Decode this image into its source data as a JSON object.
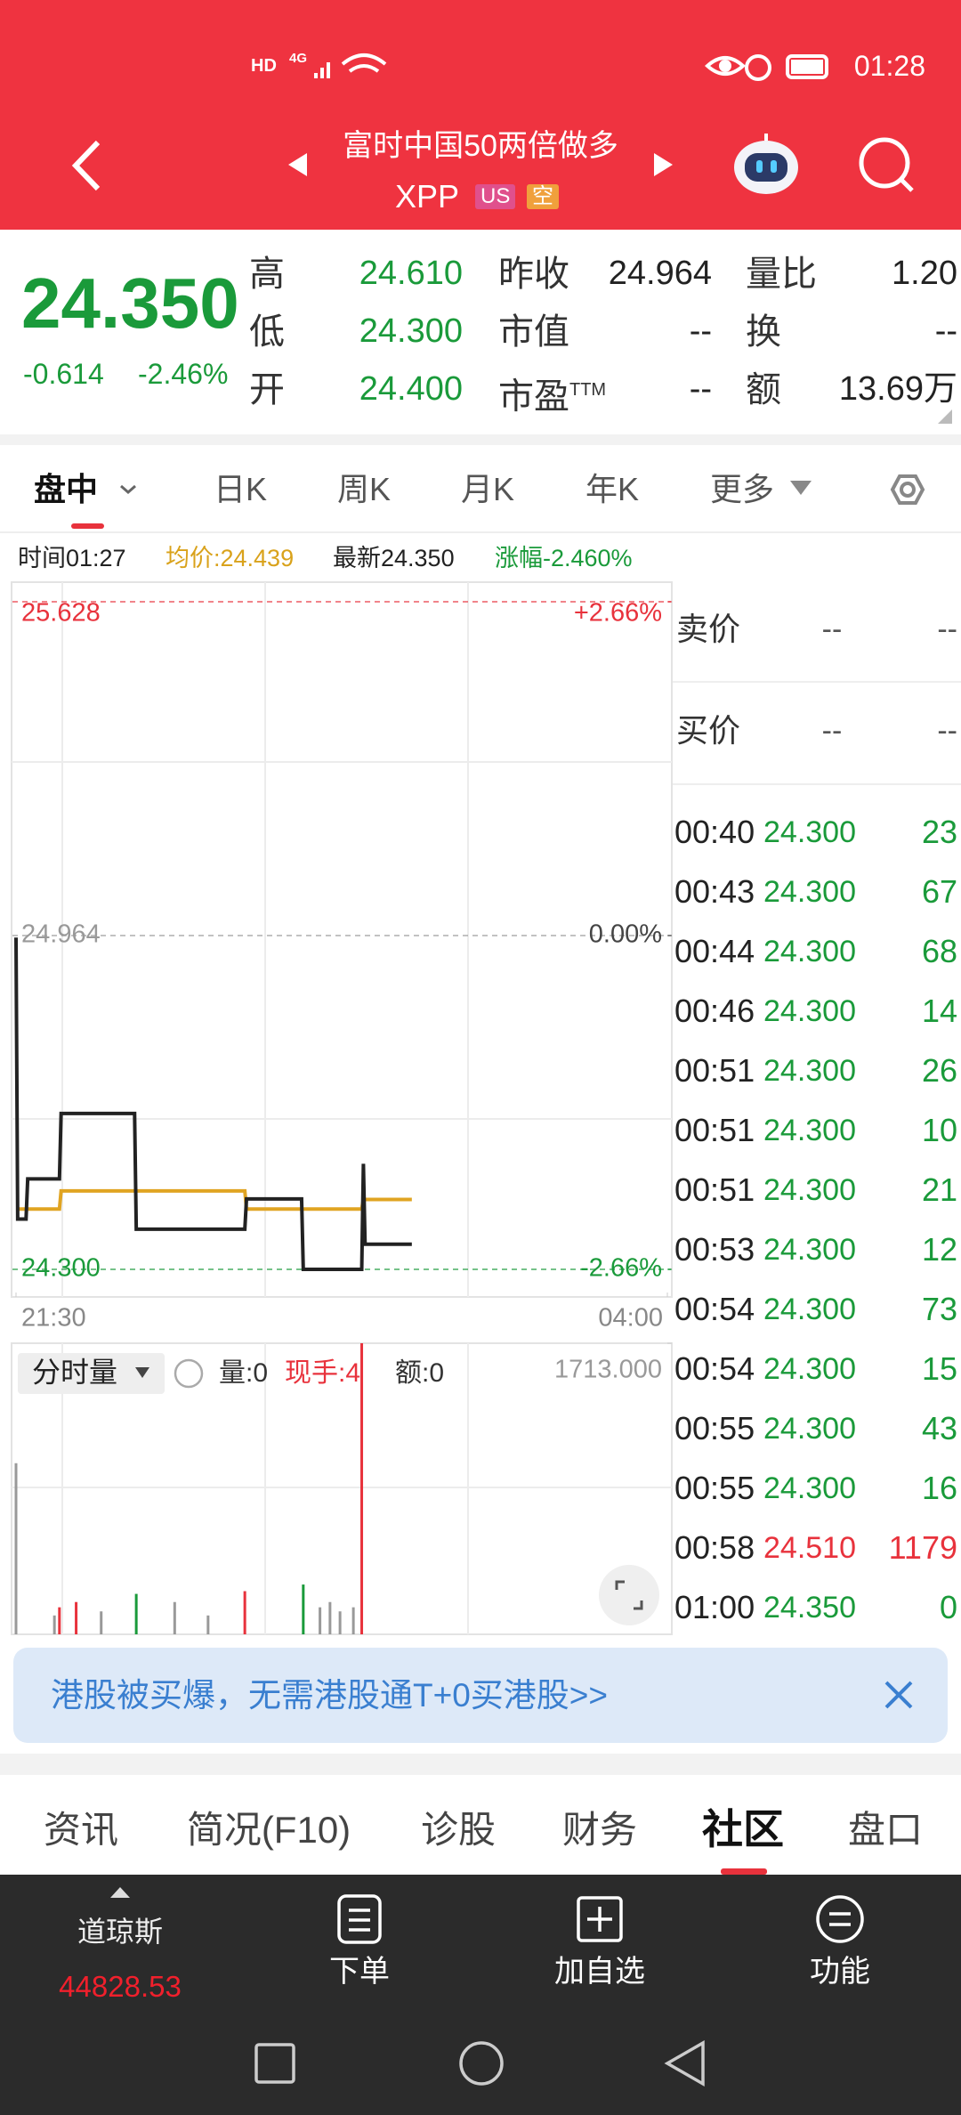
{
  "status_bar": {
    "network": [
      "HD",
      "4G"
    ],
    "time": "01:28"
  },
  "header": {
    "title": "富时中国50两倍做多",
    "symbol": "XPP",
    "badges": [
      "US",
      "空"
    ]
  },
  "colors": {
    "up": "#e8323c",
    "down": "#1a9a3a",
    "flat": "#999999"
  },
  "quote": {
    "price": "24.350",
    "change": "-0.614",
    "change_percent": "-2.46%",
    "rows": [
      [
        {
          "label": "高",
          "value": "24.610"
        },
        {
          "label": "昨收",
          "value": "24.964"
        },
        {
          "label": "量比",
          "value": "1.20"
        }
      ],
      [
        {
          "label": "低",
          "value": "24.300"
        },
        {
          "label": "市值",
          "value": "--"
        },
        {
          "label": "换",
          "value": "--"
        }
      ],
      [
        {
          "label": "开",
          "value": "24.400"
        },
        {
          "label": "市盈",
          "sup": "TTM",
          "value": "--"
        },
        {
          "label": "额",
          "value": "13.69万"
        }
      ]
    ]
  },
  "tabs": {
    "items": [
      "盘中",
      "日K",
      "周K",
      "月K",
      "年K",
      "更多"
    ],
    "active": 0
  },
  "info": {
    "time": "时间01:27",
    "average": "均价:24.439",
    "latest": "最新24.350",
    "change": "涨幅-2.460%"
  },
  "chart_data": [
    {
      "type": "line",
      "x": [
        "21:30",
        "21:31",
        "21:36",
        "21:37",
        "21:56",
        "21:57",
        "22:41",
        "22:42",
        "23:47",
        "23:48",
        "00:21",
        "00:22",
        "00:57",
        "00:58",
        "00:59",
        "01:27"
      ],
      "series": [
        {
          "color": "#222222",
          "values": [
            24.96,
            24.4,
            24.4,
            24.48,
            24.48,
            24.61,
            24.61,
            24.38,
            24.38,
            24.44,
            24.44,
            24.3,
            24.3,
            24.51,
            24.35,
            24.35
          ]
        },
        {
          "color": "#e0a422",
          "values": [
            24.42,
            24.42,
            24.42,
            24.42,
            24.42,
            24.456,
            24.456,
            24.456,
            24.456,
            24.42,
            24.42,
            24.42,
            24.42,
            24.439,
            24.439,
            24.439
          ]
        }
      ],
      "xlim": [
        "21:30",
        "04:00"
      ],
      "xticks": [
        "21:30",
        "04:00"
      ],
      "ylim": [
        24.3,
        25.628
      ],
      "yticks": [
        25.628,
        24.964,
        {
          "value": 24.3,
          "label": "24.300"
        }
      ],
      "y2lim": [
        -2.66,
        2.66
      ],
      "y2ticks": [
        {
          "value": 2.66,
          "label": "+2.66%"
        },
        {
          "value": 0,
          "label": "0.00%"
        },
        {
          "value": -2.66,
          "label": "-2.66%"
        }
      ]
    },
    {
      "type": "bar",
      "title": "分时量",
      "stats": [
        "量:0",
        "现手:4",
        "额:0"
      ],
      "x": [
        "21:30",
        "21:53",
        "21:56",
        "22:06",
        "22:21",
        "22:42",
        "23:05",
        "23:25",
        "23:47",
        "00:22",
        "00:32",
        "00:38",
        "00:44",
        "00:52",
        "00:57"
      ],
      "values": [
        1007,
        111,
        159,
        190,
        135,
        238,
        190,
        111,
        254,
        293,
        159,
        190,
        135,
        159,
        1713
      ],
      "colors": [
        "#999999",
        "#999999",
        "#e8323c",
        "#e8323c",
        "#999999",
        "#1a9a3a",
        "#999999",
        "#999999",
        "#e8323c",
        "#1a9a3a",
        "#999999",
        "#999999",
        "#999999",
        "#999999",
        "#e8323c"
      ],
      "ylim": [
        0,
        1713
      ],
      "yticks": [
        {
          "value": 1713,
          "label": "1713.000"
        }
      ]
    }
  ],
  "order_book": [
    {
      "label": "卖价",
      "price": "--",
      "volume": "--"
    },
    {
      "label": "买价",
      "price": "--",
      "volume": "--"
    }
  ],
  "trades": [
    {
      "time": "00:40",
      "price": "24.300",
      "volume": "23"
    },
    {
      "time": "00:43",
      "price": "24.300",
      "volume": "67"
    },
    {
      "time": "00:44",
      "price": "24.300",
      "volume": "68"
    },
    {
      "time": "00:46",
      "price": "24.300",
      "volume": "14"
    },
    {
      "time": "00:51",
      "price": "24.300",
      "volume": "26"
    },
    {
      "time": "00:51",
      "price": "24.300",
      "volume": "10"
    },
    {
      "time": "00:51",
      "price": "24.300",
      "volume": "21"
    },
    {
      "time": "00:53",
      "price": "24.300",
      "volume": "12"
    },
    {
      "time": "00:54",
      "price": "24.300",
      "volume": "73"
    },
    {
      "time": "00:54",
      "price": "24.300",
      "volume": "15"
    },
    {
      "time": "00:55",
      "price": "24.300",
      "volume": "43"
    },
    {
      "time": "00:55",
      "price": "24.300",
      "volume": "16"
    },
    {
      "time": "00:58",
      "price": "24.510",
      "volume": "1179"
    },
    {
      "time": "01:00",
      "price": "24.350",
      "volume": "0"
    }
  ],
  "banner": {
    "text": "港股被买爆，无需港股通T+0买港股>>"
  },
  "bottom_tabs": {
    "items": [
      "资讯",
      "简况(F10)",
      "诊股",
      "财务",
      "社区",
      "盘口"
    ],
    "active": 4
  },
  "toolbar": {
    "index_name": "道琼斯",
    "index_value": "44828.53",
    "buttons": [
      "下单",
      "加自选",
      "功能"
    ]
  }
}
